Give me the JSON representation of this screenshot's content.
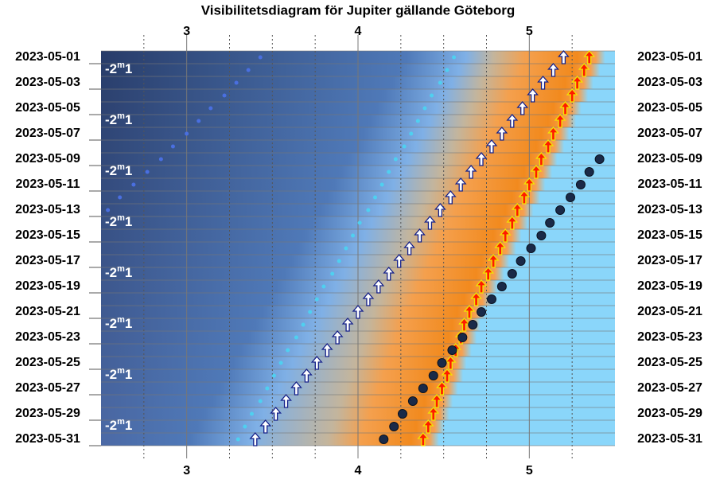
{
  "chart_data": {
    "type": "visibility",
    "title": "Visibilitetsdiagram för Jupiter gällande Göteborg",
    "categories": [
      "2023-05-01",
      null,
      "2023-05-03",
      null,
      "2023-05-05",
      null,
      "2023-05-07",
      null,
      "2023-05-09",
      null,
      "2023-05-11",
      null,
      "2023-05-13",
      null,
      "2023-05-15",
      null,
      "2023-05-17",
      null,
      "2023-05-19",
      null,
      "2023-05-21",
      null,
      "2023-05-23",
      null,
      "2023-05-25",
      null,
      "2023-05-27",
      null,
      "2023-05-29",
      null,
      "2023-05-31"
    ],
    "xlim": [
      2.5,
      5.5
    ],
    "xticks": [
      3,
      4,
      5
    ],
    "xminorticks": [
      2.75,
      3.25,
      3.5,
      3.75,
      4.25,
      4.5,
      4.75,
      5.25
    ],
    "magnitude": {
      "sign": "-2",
      "sup": "m",
      "rest": "1"
    },
    "series": [
      {
        "kind": "dot",
        "color": "#4a6fe0",
        "values": [
          3.43,
          3.36,
          3.29,
          3.22,
          3.14,
          3.07,
          3.0,
          2.92,
          2.85,
          2.77,
          2.69,
          2.61,
          2.54,
          null,
          null,
          null,
          null,
          null,
          null,
          null,
          null,
          null,
          null,
          null,
          null,
          null,
          null,
          null,
          null,
          null,
          null
        ]
      },
      {
        "kind": "dot",
        "color": "#4fd0f0",
        "values": [
          4.56,
          4.52,
          4.48,
          4.43,
          4.39,
          4.35,
          4.31,
          4.27,
          4.22,
          4.18,
          4.14,
          4.1,
          4.06,
          4.01,
          3.97,
          3.93,
          3.89,
          3.85,
          3.8,
          3.76,
          3.72,
          3.68,
          3.64,
          3.59,
          3.55,
          3.51,
          3.47,
          3.43,
          3.38,
          3.34,
          3.3
        ]
      },
      {
        "kind": "arrow",
        "color": "#ffffff",
        "values": [
          5.2,
          5.14,
          5.08,
          5.02,
          4.96,
          4.9,
          4.84,
          4.78,
          4.72,
          4.66,
          4.6,
          4.54,
          4.48,
          4.42,
          4.36,
          4.3,
          4.24,
          4.18,
          4.12,
          4.06,
          4.0,
          3.94,
          3.88,
          3.82,
          3.76,
          3.7,
          3.64,
          3.58,
          3.52,
          3.46,
          3.4
        ]
      },
      {
        "kind": "arrow",
        "color": "#ff1a00",
        "values": [
          5.35,
          5.32,
          5.28,
          5.25,
          5.21,
          5.18,
          5.14,
          5.11,
          5.07,
          5.04,
          5.0,
          4.97,
          4.93,
          4.9,
          4.86,
          4.83,
          4.79,
          4.76,
          4.72,
          4.69,
          4.65,
          4.62,
          4.6,
          4.57,
          4.54,
          4.52,
          4.49,
          4.46,
          4.44,
          4.41,
          4.38
        ]
      },
      {
        "kind": "bigdot",
        "color": "#1a2a48",
        "values": [
          null,
          null,
          null,
          null,
          null,
          null,
          null,
          null,
          5.41,
          5.35,
          5.3,
          5.24,
          5.18,
          5.12,
          5.07,
          5.01,
          4.95,
          4.9,
          4.84,
          4.78,
          4.72,
          4.67,
          4.61,
          4.55,
          4.49,
          4.44,
          4.38,
          4.32,
          4.26,
          4.21,
          4.15
        ]
      }
    ]
  }
}
